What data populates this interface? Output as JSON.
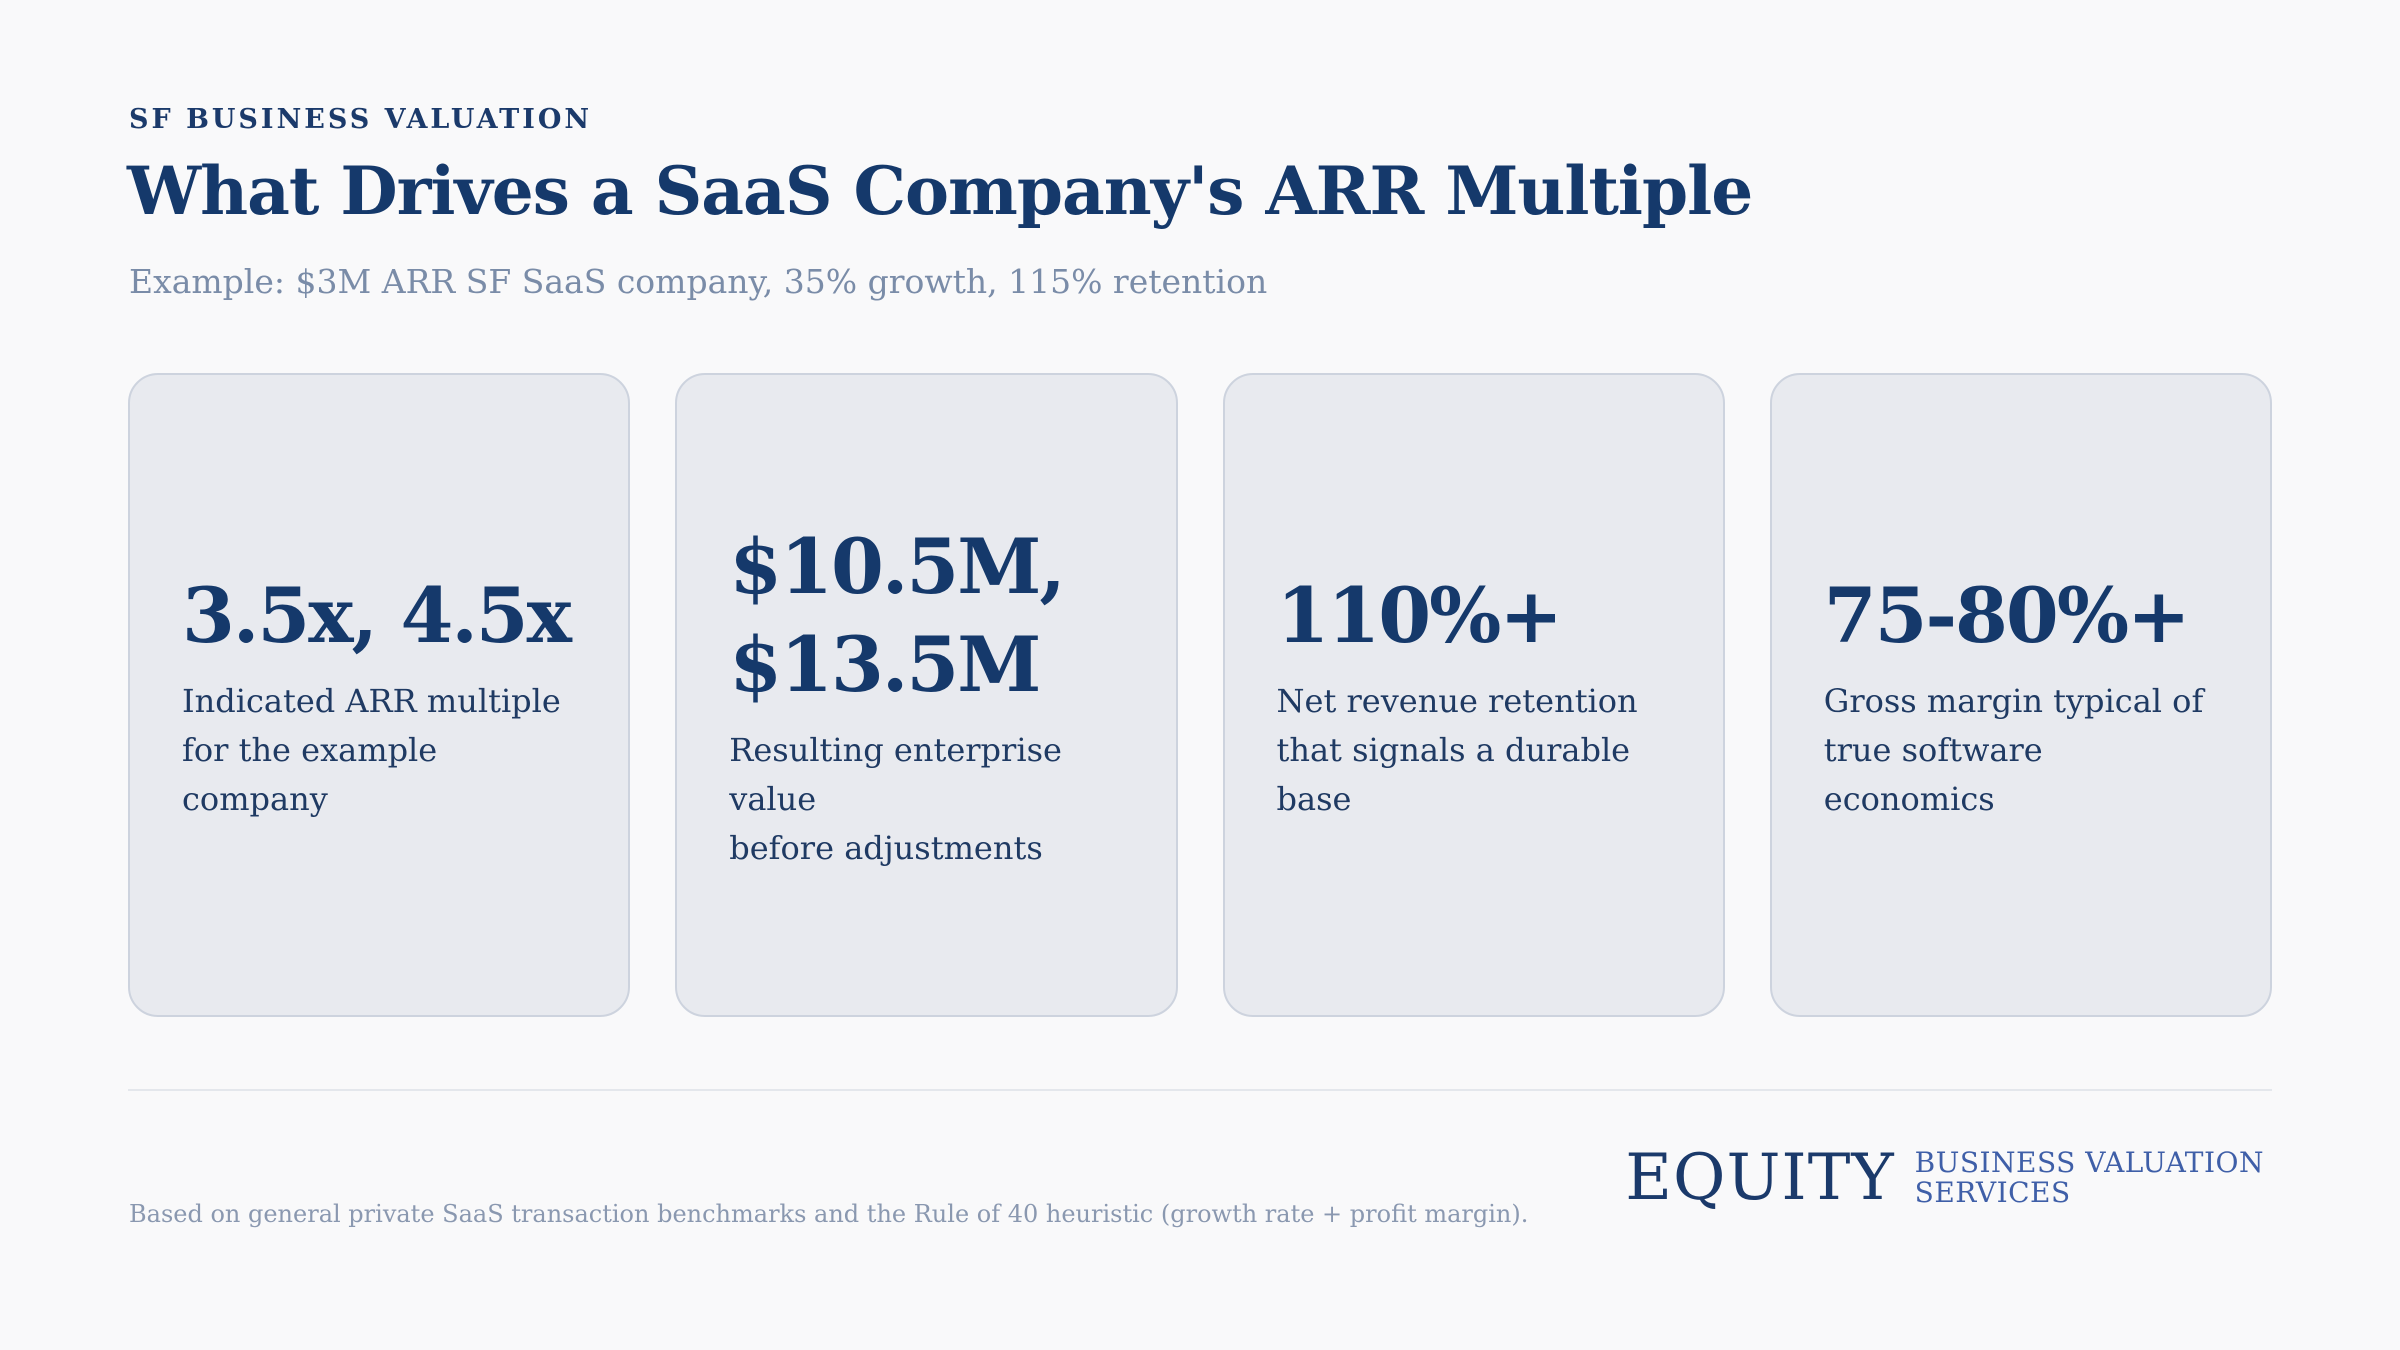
{
  "header": {
    "eyebrow": "SF BUSINESS VALUATION",
    "title": "What Drives a SaaS Company's ARR Multiple",
    "subtitle": "Example: $3M ARR SF SaaS company, 35% growth, 115% retention"
  },
  "cards": [
    {
      "value_lines": [
        "3.5x, 4.5x"
      ],
      "desc_lines": [
        "Indicated ARR multiple",
        "for the example company"
      ]
    },
    {
      "value_lines": [
        "$10.5M,",
        "$13.5M"
      ],
      "desc_lines": [
        "Resulting enterprise value",
        "before adjustments"
      ]
    },
    {
      "value_lines": [
        "110%+"
      ],
      "desc_lines": [
        "Net revenue retention",
        "that signals a durable base"
      ]
    },
    {
      "value_lines": [
        "75-80%+"
      ],
      "desc_lines": [
        "Gross margin typical of",
        "true software economics"
      ]
    }
  ],
  "footer": {
    "note": "Based on general private SaaS transaction benchmarks and the Rule of 40 heuristic (growth rate + profit margin).",
    "logo": {
      "mark": "EQUITY",
      "sub_line_1": "BUSINESS VALUATION",
      "sub_line_2": "SERVICES"
    }
  },
  "colors": {
    "background": "#f9f9fa",
    "primary_navy": "#15396b",
    "card_fill": "#e8eaef",
    "card_border": "#cdd3de",
    "muted_text": "#7a8ca8",
    "logo_accent": "#3f5fa8"
  }
}
